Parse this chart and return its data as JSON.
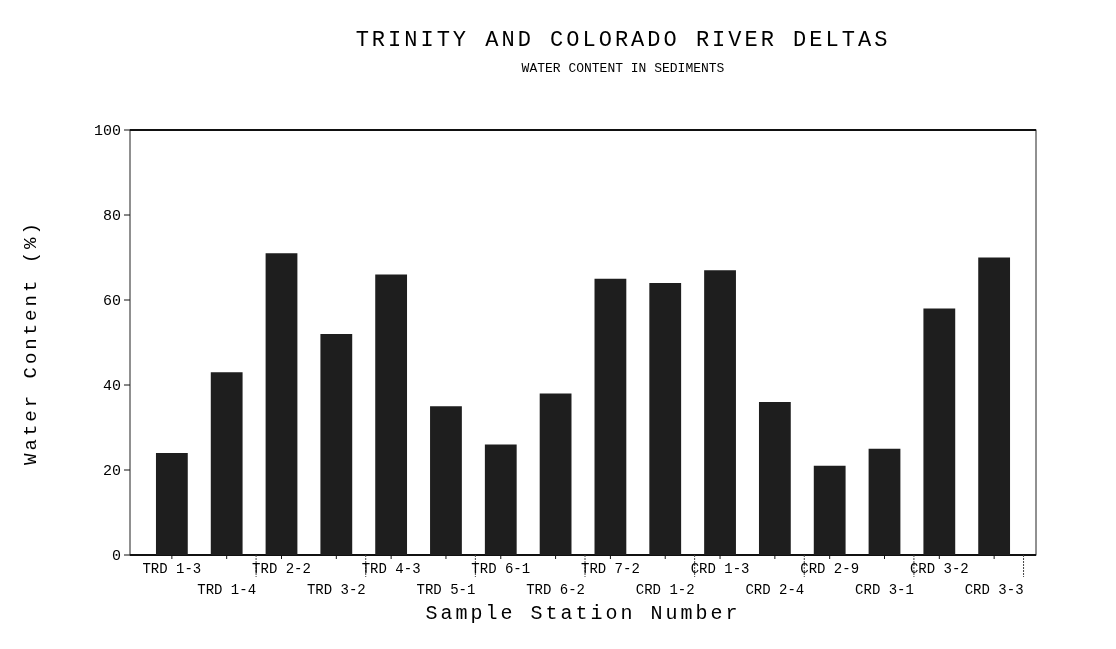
{
  "chart_data": {
    "type": "bar",
    "title": "TRINITY AND COLORADO RIVER DELTAS",
    "subtitle": "WATER CONTENT IN SEDIMENTS",
    "xlabel": "Sample Station Number",
    "ylabel": "Water Content (%)",
    "categories": [
      "TRD 1-3",
      "TRD 1-4",
      "TRD 2-2",
      "TRD 3-2",
      "TRD 4-3",
      "TRD 5-1",
      "TRD 6-1",
      "TRD 6-2",
      "TRD 7-2",
      "CRD 1-2",
      "CRD 1-3",
      "CRD 2-4",
      "CRD 2-9",
      "CRD 3-1",
      "CRD 3-2",
      "CRD 3-3"
    ],
    "values": [
      24,
      43,
      71,
      52,
      66,
      35,
      26,
      38,
      65,
      64,
      67,
      36,
      21,
      25,
      58,
      70
    ],
    "color": "#1e1e1e",
    "ylim": [
      0,
      100
    ],
    "yticks": [
      0,
      20,
      40,
      60,
      80,
      100
    ],
    "grid": false
  }
}
